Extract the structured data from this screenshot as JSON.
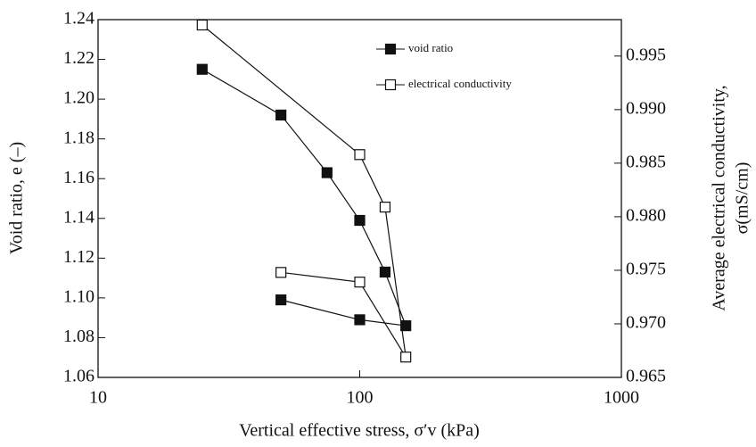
{
  "chart_data": {
    "type": "line",
    "xlabel": "Vertical effective stress, σ′v (kPa)",
    "ylabel": "Void ratio, e (–)",
    "y2label": [
      "Average electrical conductivity,",
      "σ(mS/cm)"
    ],
    "xscale": "log",
    "xlim": [
      10,
      1000
    ],
    "xticks": [
      10,
      100,
      1000
    ],
    "ylim": [
      1.06,
      1.24
    ],
    "yticks": [
      1.06,
      1.08,
      {
        "value": 1.1,
        "label": "1.10"
      },
      1.12,
      1.14,
      1.16,
      1.18,
      {
        "value": 1.2,
        "label": "1.20"
      },
      1.22,
      1.24
    ],
    "y2lim": [
      0.965,
      0.9984
    ],
    "y2ticks": [
      0.965,
      {
        "value": 0.97,
        "label": "0.970"
      },
      0.975,
      {
        "value": 0.98,
        "label": "0.980"
      },
      0.985,
      {
        "value": 0.99,
        "label": "0.990"
      },
      0.995
    ],
    "legend": "upper right",
    "series": [
      {
        "name": "void ratio",
        "color": "#111111",
        "marker": "filled-square",
        "x": [
          25,
          50,
          75,
          100,
          125,
          150,
          100,
          50
        ],
        "values": [
          1.215,
          1.192,
          1.163,
          1.139,
          1.113,
          1.086,
          1.089,
          1.099
        ]
      },
      {
        "name": "electrical conductivity",
        "color": "#111111",
        "marker": "open-square",
        "axis": "y2",
        "x": [
          25,
          100,
          125,
          150,
          100,
          50
        ],
        "values": [
          0.9979,
          0.9858,
          0.9809,
          0.9669,
          0.9739,
          0.9748
        ]
      }
    ]
  }
}
